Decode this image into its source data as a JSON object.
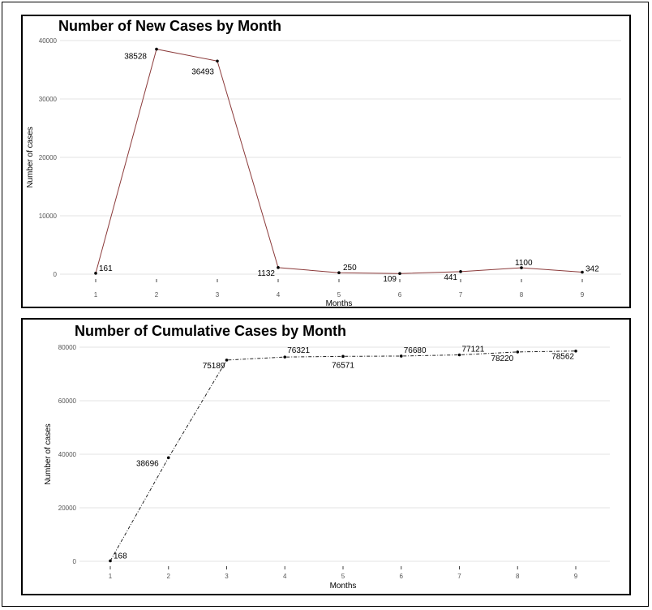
{
  "chart_data": [
    {
      "type": "line",
      "title": "Number of New Cases by Month",
      "xlabel": "Months",
      "ylabel": "Number of cases",
      "x": [
        1,
        2,
        3,
        4,
        5,
        6,
        7,
        8,
        9
      ],
      "series": [
        {
          "values": [
            161,
            38528,
            36493,
            1132,
            250,
            109,
            441,
            1100,
            342
          ]
        }
      ],
      "y_ticks": [
        0,
        10000,
        20000,
        30000,
        40000
      ],
      "ylim": [
        0,
        40000
      ],
      "line_color": "#8b3a3a",
      "line_style": "solid",
      "grid": true
    },
    {
      "type": "line",
      "title": "Number of Cumulative Cases by Month",
      "xlabel": "Months",
      "ylabel": "Number of cases",
      "x": [
        1,
        2,
        3,
        4,
        5,
        6,
        7,
        8,
        9
      ],
      "series": [
        {
          "values": [
            168,
            38696,
            75189,
            76321,
            76571,
            76680,
            77121,
            78220,
            78562
          ]
        }
      ],
      "y_ticks": [
        0,
        20000,
        40000,
        60000,
        80000
      ],
      "ylim": [
        0,
        80000
      ],
      "line_color": "#222222",
      "line_style": "dash-dot",
      "grid": true
    }
  ]
}
